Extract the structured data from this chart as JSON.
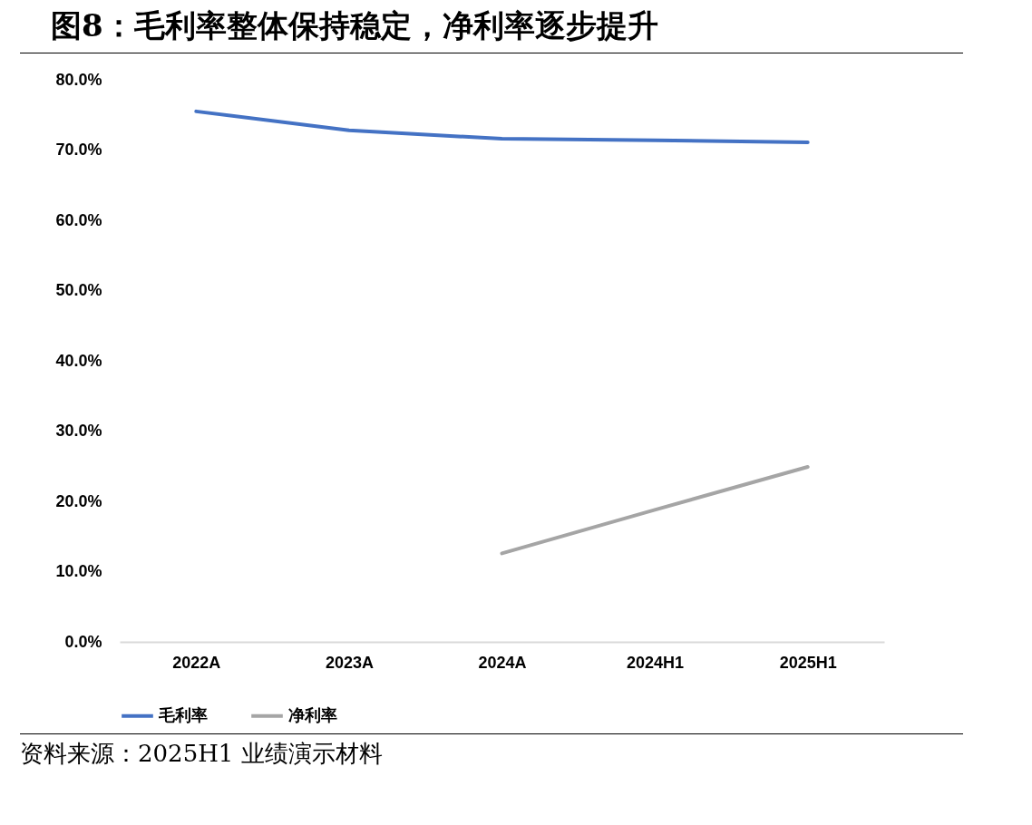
{
  "chart_data": {
    "type": "line",
    "title": "图8：毛利率整体保持稳定，净利率逐步提升",
    "categories": [
      "2022A",
      "2023A",
      "2024A",
      "2024H1",
      "2025H1"
    ],
    "series": [
      {
        "name": "毛利率",
        "color": "#4472c4",
        "values": [
          75.5,
          72.8,
          71.6,
          71.4,
          71.1
        ]
      },
      {
        "name": "净利率",
        "color": "#a5a5a5",
        "values": [
          null,
          null,
          12.6,
          18.8,
          24.9
        ]
      }
    ],
    "ylim": [
      0,
      80
    ],
    "yticks": [
      {
        "value": 0,
        "label": "0.0%"
      },
      {
        "value": 10,
        "label": "10.0%"
      },
      {
        "value": 20,
        "label": "20.0%"
      },
      {
        "value": 30,
        "label": "30.0%"
      },
      {
        "value": 40,
        "label": "40.0%"
      },
      {
        "value": 50,
        "label": "50.0%"
      },
      {
        "value": 60,
        "label": "60.0%"
      },
      {
        "value": 70,
        "label": "70.0%"
      },
      {
        "value": 80,
        "label": "80.0%"
      }
    ],
    "grid": false,
    "legend": "bottom",
    "annotations": [
      "资料来源：2025H1 业绩演示材料"
    ]
  }
}
